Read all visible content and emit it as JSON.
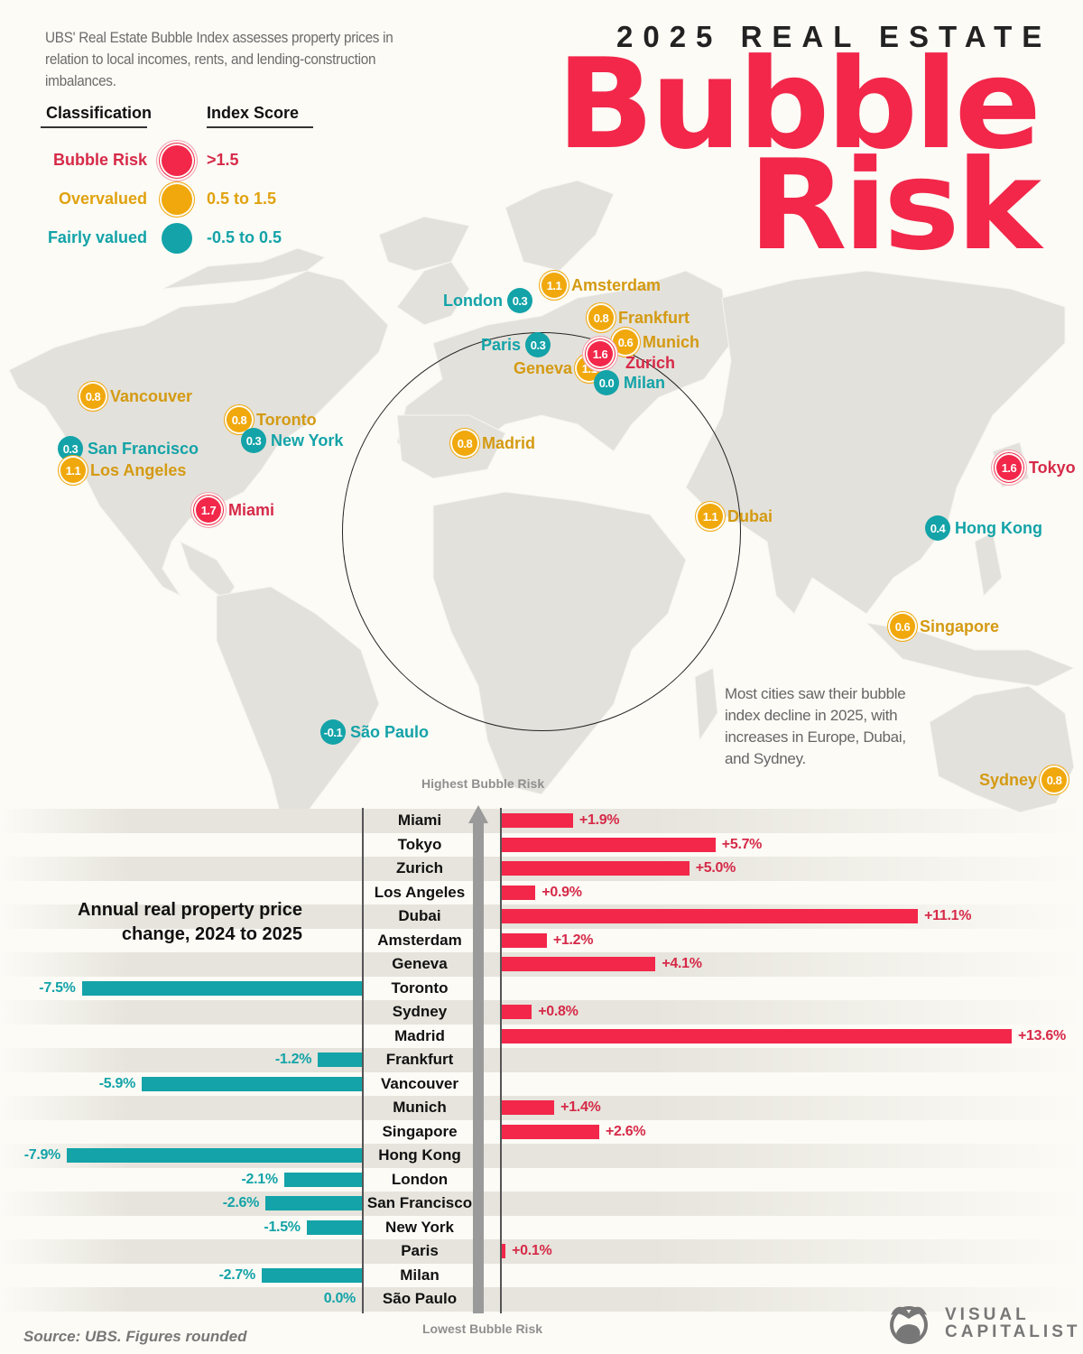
{
  "header": {
    "intro": "UBS' Real Estate Bubble Index assesses property prices in relation to local incomes, rents, and lending-construction imbalances.",
    "supertitle": "2025 REAL ESTATE",
    "title_line1": "Bubble",
    "title_line2": "Risk"
  },
  "legend": {
    "col1": "Classification",
    "col2": "Index Score",
    "items": [
      {
        "label": "Bubble Risk",
        "range": ">1.5",
        "color": "#f2274a",
        "text_color": "#d62a48"
      },
      {
        "label": "Overvalued",
        "range": "0.5 to 1.5",
        "color": "#f0a80c",
        "text_color": "#e0a20f"
      },
      {
        "label": "Fairly valued",
        "range": "-0.5 to 0.5",
        "color": "#13a3a8",
        "text_color": "#13a3a8"
      }
    ]
  },
  "map": {
    "markers": [
      {
        "city": "Amsterdam",
        "score": "1.1",
        "class": "orange"
      },
      {
        "city": "London",
        "score": "0.3",
        "class": "teal"
      },
      {
        "city": "Frankfurt",
        "score": "0.8",
        "class": "orange"
      },
      {
        "city": "Paris",
        "score": "0.3",
        "class": "teal"
      },
      {
        "city": "Munich",
        "score": "0.6",
        "class": "orange"
      },
      {
        "city": "Zurich",
        "score": "1.6",
        "class": "red"
      },
      {
        "city": "Geneva",
        "score": "1.1",
        "class": "orange"
      },
      {
        "city": "Milan",
        "score": "0.0",
        "class": "teal"
      },
      {
        "city": "Madrid",
        "score": "0.8",
        "class": "orange"
      },
      {
        "city": "Vancouver",
        "score": "0.8",
        "class": "orange"
      },
      {
        "city": "Toronto",
        "score": "0.8",
        "class": "orange"
      },
      {
        "city": "New York",
        "score": "0.3",
        "class": "teal"
      },
      {
        "city": "San Francisco",
        "score": "0.3",
        "class": "teal"
      },
      {
        "city": "Los Angeles",
        "score": "1.1",
        "class": "orange"
      },
      {
        "city": "Miami",
        "score": "1.7",
        "class": "red"
      },
      {
        "city": "Tokyo",
        "score": "1.6",
        "class": "red"
      },
      {
        "city": "Dubai",
        "score": "1.1",
        "class": "orange"
      },
      {
        "city": "Hong Kong",
        "score": "0.4",
        "class": "teal"
      },
      {
        "city": "Singapore",
        "score": "0.6",
        "class": "orange"
      },
      {
        "city": "São Paulo",
        "score": "-0.1",
        "class": "teal"
      },
      {
        "city": "Sydney",
        "score": "0.8",
        "class": "orange"
      }
    ],
    "note": "Most cities saw their bubble index decline in 2025, with increases in Europe, Dubai, and Sydney."
  },
  "chart": {
    "title_line1": "Annual real property price",
    "title_line2": "change, 2024 to 2025",
    "top_label": "Highest Bubble Risk",
    "bottom_label": "Lowest Bubble Risk"
  },
  "chart_data": {
    "type": "bar",
    "title": "Annual real property price change, 2024 to 2025",
    "xlabel": "",
    "ylabel": "",
    "orientation": "horizontal",
    "categories": [
      "Miami",
      "Tokyo",
      "Zurich",
      "Los Angeles",
      "Dubai",
      "Amsterdam",
      "Geneva",
      "Toronto",
      "Sydney",
      "Madrid",
      "Frankfurt",
      "Vancouver",
      "Munich",
      "Singapore",
      "Hong Kong",
      "London",
      "San Francisco",
      "New York",
      "Paris",
      "Milan",
      "São Paulo"
    ],
    "values": [
      1.9,
      5.7,
      5.0,
      0.9,
      11.1,
      1.2,
      4.1,
      -7.5,
      0.8,
      13.6,
      -1.2,
      -5.9,
      1.4,
      2.6,
      -7.9,
      -2.1,
      -2.6,
      -1.5,
      0.1,
      -2.7,
      0.0
    ],
    "labels": [
      "+1.9%",
      "+5.7%",
      "+5.0%",
      "+0.9%",
      "+11.1%",
      "+1.2%",
      "+4.1%",
      "-7.5%",
      "+0.8%",
      "+13.6%",
      "-1.2%",
      "-5.9%",
      "+1.4%",
      "+2.6%",
      "-7.9%",
      "-2.1%",
      "-2.6%",
      "-1.5%",
      "+0.1%",
      "-2.7%",
      "0.0%"
    ],
    "bubble_index": [
      1.7,
      1.6,
      1.6,
      1.1,
      1.1,
      1.1,
      1.1,
      0.8,
      0.8,
      0.8,
      0.8,
      0.8,
      0.6,
      0.6,
      0.4,
      0.3,
      0.3,
      0.3,
      0.3,
      0.0,
      -0.1
    ],
    "order_note": "Sorted from Highest Bubble Risk (top) to Lowest Bubble Risk (bottom)",
    "colors": {
      "positive": "#f2274a",
      "negative": "#13a3a8"
    },
    "xlim": [
      -7.9,
      13.6
    ],
    "grid": false
  },
  "footer": {
    "source": "Source: UBS. Figures rounded",
    "logo_line1": "VISUAL",
    "logo_line2": "CAPITALIST"
  }
}
